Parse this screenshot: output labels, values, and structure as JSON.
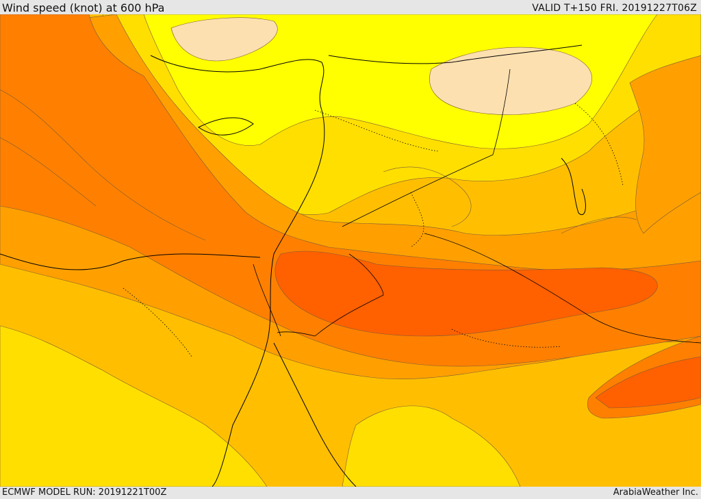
{
  "header": {
    "title": "Wind speed (knot) at 600 hPa",
    "valid": "VALID T+150 FRI. 20191227T06Z"
  },
  "footer": {
    "model_run": "ECMWF MODEL RUN: 20191221T00Z",
    "credit": "ArabiaWeather Inc."
  },
  "map": {
    "palette": {
      "lightest": "#fde0b0",
      "yellow": "#ffff00",
      "gold": "#ffdf00",
      "amber": "#ffbf00",
      "orange_light": "#ffa000",
      "orange": "#ff8000",
      "orange_dark": "#ff6000",
      "coastline": "#000000"
    }
  }
}
